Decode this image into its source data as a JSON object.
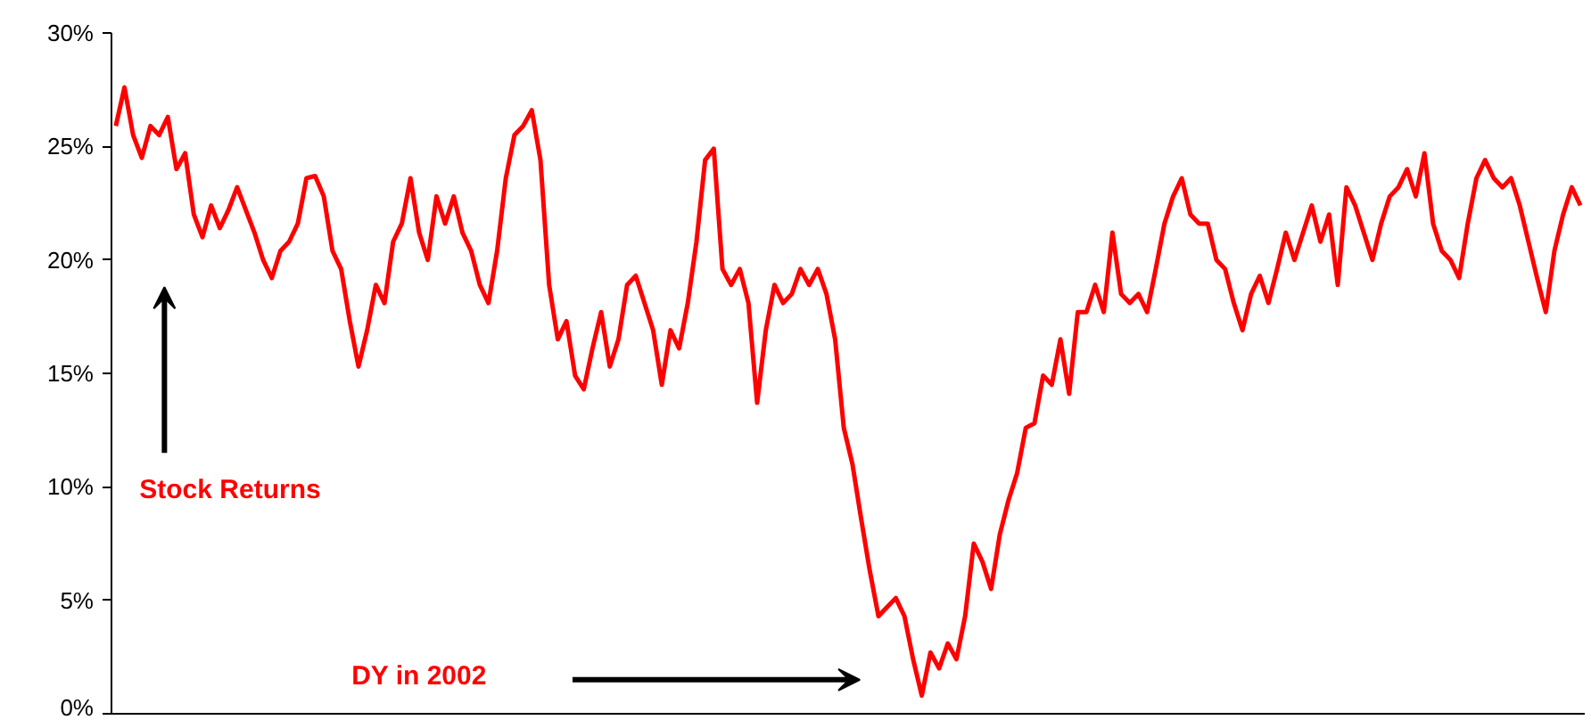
{
  "chart_data": {
    "type": "line",
    "categories": [
      null,
      null,
      null,
      null,
      null,
      null,
      null,
      null,
      null,
      null,
      null,
      null,
      null,
      null,
      null,
      null,
      null,
      null,
      null,
      null,
      null,
      null,
      null,
      null,
      null,
      null,
      null,
      null,
      null,
      null,
      null,
      null,
      null,
      null,
      null,
      null,
      null,
      null,
      null,
      null,
      null,
      null,
      null,
      null,
      null,
      null,
      null,
      null,
      null,
      null,
      null,
      null,
      null,
      null,
      null,
      null,
      null,
      null,
      null,
      null,
      null,
      null,
      null,
      null,
      null,
      null,
      null,
      null,
      null,
      null,
      null,
      null,
      null,
      null,
      null,
      null,
      null,
      null,
      null,
      null,
      null,
      null,
      null,
      null,
      null,
      null,
      null,
      null,
      null,
      null,
      null,
      null,
      null,
      null,
      null,
      null,
      null,
      null,
      null,
      null,
      null,
      null,
      null,
      null,
      null,
      null,
      null,
      null,
      null,
      null,
      null,
      null,
      null,
      null,
      null,
      null,
      null,
      null,
      null,
      null,
      null,
      null,
      null,
      null,
      null,
      null,
      null,
      null,
      null,
      null,
      null,
      null,
      null,
      null,
      null,
      null,
      null,
      null,
      null,
      null,
      null,
      null,
      null,
      null,
      null,
      null,
      null,
      null,
      null,
      null,
      null,
      null,
      null,
      null,
      null,
      null,
      null,
      null,
      null,
      null,
      null,
      null,
      null,
      null,
      null,
      null,
      null,
      null,
      null,
      null
    ],
    "series": [
      {
        "color": "#ff0000",
        "values": [
          25.9,
          27.6,
          25.5,
          24.5,
          25.9,
          25.5,
          26.3,
          24,
          24.7,
          22,
          21,
          22.4,
          21.4,
          22.2,
          23.2,
          22.2,
          21.2,
          20,
          19.2,
          20.4,
          20.8,
          21.6,
          23.6,
          23.7,
          22.8,
          20.4,
          19.6,
          17.3,
          15.3,
          16.9,
          18.9,
          18.1,
          20.8,
          21.6,
          23.6,
          21.2,
          20,
          22.8,
          21.6,
          22.8,
          21.2,
          20.4,
          18.9,
          18.1,
          20.4,
          23.6,
          25.5,
          25.9,
          26.6,
          24.4,
          18.9,
          16.5,
          17.3,
          14.9,
          14.3,
          16.1,
          17.7,
          15.3,
          16.5,
          18.9,
          19.3,
          18.1,
          16.9,
          14.5,
          16.9,
          16.1,
          18.1,
          20.8,
          24.4,
          24.9,
          19.6,
          18.9,
          19.6,
          18.1,
          13.7,
          16.9,
          18.9,
          18.1,
          18.5,
          19.6,
          18.9,
          19.6,
          18.5,
          16.5,
          12.6,
          11,
          8.6,
          6.3,
          4.3,
          4.7,
          5.1,
          4.3,
          2.4,
          0.8,
          2.7,
          2,
          3.1,
          2.4,
          4.3,
          7.5,
          6.7,
          5.5,
          7.9,
          9.4,
          10.6,
          12.6,
          12.8,
          14.9,
          14.5,
          16.5,
          14.1,
          17.7,
          17.7,
          18.9,
          17.7,
          21.2,
          18.5,
          18.1,
          18.5,
          17.7,
          19.6,
          21.6,
          22.8,
          23.6,
          22,
          21.6,
          21.6,
          20,
          19.6,
          18.1,
          16.9,
          18.5,
          19.3,
          18.1,
          19.6,
          21.2,
          20,
          21.2,
          22.4,
          20.8,
          22,
          18.9,
          23.2,
          22.4,
          21.2,
          20,
          21.6,
          22.8,
          23.2,
          24,
          22.8,
          24.7,
          21.6,
          20.4,
          20,
          19.2,
          21.6,
          23.6,
          24.4,
          23.6,
          23.2,
          23.6,
          22.4,
          20.8,
          19.2,
          17.7,
          20.4,
          22,
          23.2,
          22.4
        ]
      }
    ],
    "ylim": [
      0,
      30
    ],
    "yticks": [
      {
        "value": 0,
        "label": "0%"
      },
      {
        "value": 5,
        "label": "5%"
      },
      {
        "value": 10,
        "label": "10%"
      },
      {
        "value": 15,
        "label": "15%"
      },
      {
        "value": 20,
        "label": "20%"
      },
      {
        "value": 25,
        "label": "25%"
      },
      {
        "value": 30,
        "label": "30%"
      }
    ],
    "tick_labels": "y",
    "grid": false,
    "marker": "none",
    "line_style": "solid",
    "annotations": [
      "Stock Returns",
      "DY in 2002"
    ]
  }
}
